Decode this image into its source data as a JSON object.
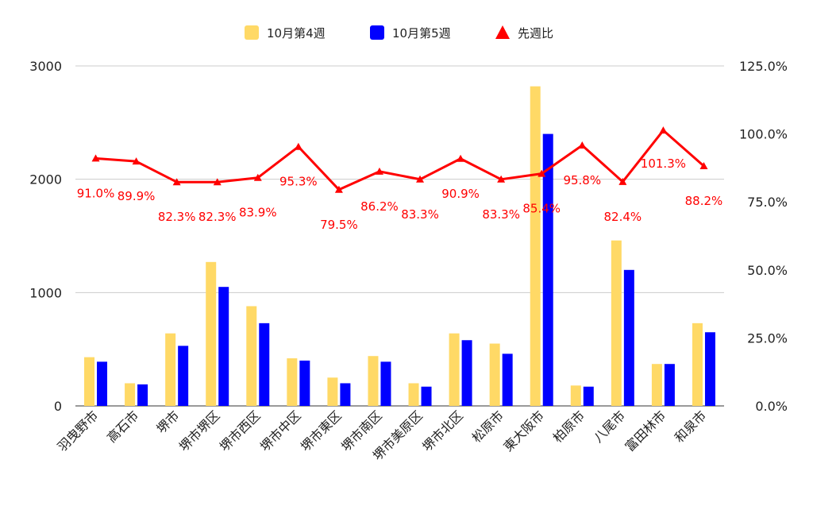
{
  "chart_data": {
    "type": "bar",
    "categories": [
      "羽曳野市",
      "高石市",
      "堺市",
      "堺市堺区",
      "堺市西区",
      "堺市中区",
      "堺市東区",
      "堺市南区",
      "堺市美原区",
      "堺市北区",
      "松原市",
      "東大阪市",
      "柏原市",
      "八尾市",
      "富田林市",
      "和泉市"
    ],
    "series": [
      {
        "name": "10月第4週",
        "color": "#ffd966",
        "values": [
          430,
          200,
          640,
          1270,
          880,
          420,
          250,
          440,
          200,
          640,
          550,
          2820,
          180,
          1460,
          370,
          730
        ]
      },
      {
        "name": "10月第5週",
        "color": "#0000ff",
        "values": [
          390,
          190,
          530,
          1050,
          730,
          400,
          200,
          390,
          170,
          580,
          460,
          2400,
          170,
          1200,
          370,
          650
        ]
      }
    ],
    "line_series": {
      "name": "先週比",
      "color": "#ff0000",
      "values": [
        91.0,
        89.9,
        82.3,
        82.3,
        83.9,
        95.3,
        79.5,
        86.2,
        83.3,
        90.9,
        83.3,
        85.4,
        95.8,
        82.4,
        101.3,
        88.2
      ],
      "labels": [
        "91.0%",
        "89.9%",
        "82.3%",
        "82.3%",
        "83.9%",
        "95.3%",
        "79.5%",
        "86.2%",
        "83.3%",
        "90.9%",
        "83.3%",
        "85.4%",
        "95.8%",
        "82.4%",
        "101.3%",
        "88.2%"
      ]
    },
    "y_left": {
      "min": 0,
      "max": 3000,
      "ticks": [
        0,
        1000,
        2000,
        3000
      ],
      "tick_labels": [
        "0",
        "1000",
        "2000",
        "3000"
      ]
    },
    "y_right": {
      "min": 0,
      "max": 125,
      "ticks": [
        0,
        25,
        50,
        75,
        100,
        125
      ],
      "tick_labels": [
        "0.0%",
        "25.0%",
        "50.0%",
        "75.0%",
        "100.0%",
        "125.0%"
      ]
    },
    "legend_position": "top-center",
    "grid": true
  }
}
